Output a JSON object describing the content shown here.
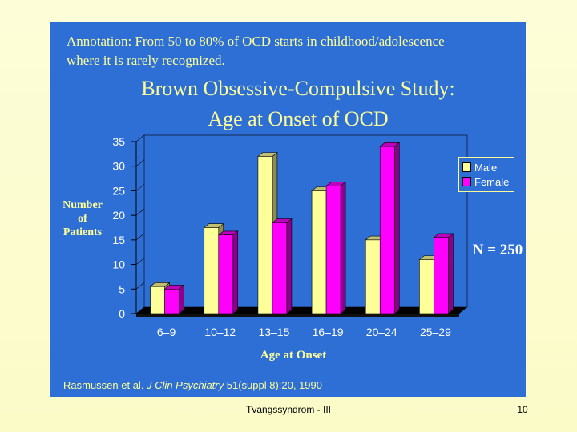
{
  "annotation": {
    "line1": "Annotation:  From 50 to 80% of OCD starts in childhood/adolescence",
    "line2": "where it is rarely recognized."
  },
  "chart_data": {
    "type": "bar",
    "title_line1": "Brown Obsessive-Compulsive Study:",
    "title_line2": "Age at Onset of OCD",
    "xlabel": "Age at Onset",
    "ylabel_line1": "Number",
    "ylabel_line2": "of",
    "ylabel_line3": "Patients",
    "ylim": [
      0,
      35
    ],
    "yticks": [
      "0",
      "5",
      "10",
      "15",
      "20",
      "25",
      "30",
      "35"
    ],
    "categories": [
      "6–9",
      "10–12",
      "13–15",
      "16–19",
      "20–24",
      "25–29"
    ],
    "series": [
      {
        "name": "Male",
        "color": "#ffff99",
        "values": [
          5.5,
          17.5,
          32,
          25,
          15,
          11
        ]
      },
      {
        "name": "Female",
        "color": "#ff00ff",
        "values": [
          5,
          16,
          18.5,
          26,
          34,
          15.5
        ]
      }
    ],
    "legend_position": "right",
    "annotation": "N = 250"
  },
  "citation": {
    "prefix": "Rasmussen et al. ",
    "journal": "J Clin Psychiatry",
    "suffix": " 51(suppl 8):20, 1990"
  },
  "footer": {
    "text": "Tvangssyndrom - III",
    "page_number": "10"
  },
  "colors": {
    "panel": "#2e6fd6",
    "text_yellow": "#fdfd9a",
    "male": "#ffff99",
    "female": "#ff00ff",
    "floor": "#000000"
  }
}
